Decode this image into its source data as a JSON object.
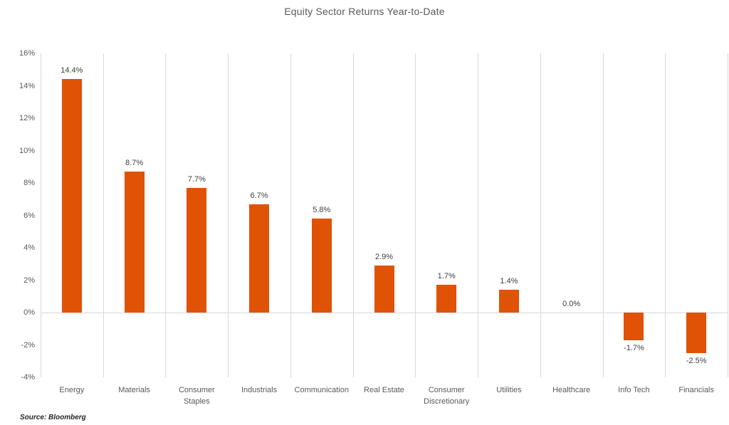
{
  "source": "Source: Bloomberg",
  "chart_data": {
    "type": "bar",
    "title": "Equity Sector Returns Year-to-Date",
    "categories": [
      "Energy",
      "Materials",
      "Consumer Staples",
      "Industrials",
      "Communication",
      "Real Estate",
      "Consumer Discretionary",
      "Utilities",
      "Healthcare",
      "Info Tech",
      "Financials"
    ],
    "values": [
      14.4,
      8.7,
      7.7,
      6.7,
      5.8,
      2.9,
      1.7,
      1.4,
      0.0,
      -1.7,
      -2.5
    ],
    "data_labels": [
      "14.4%",
      "8.7%",
      "7.7%",
      "6.7%",
      "5.8%",
      "2.9%",
      "1.7%",
      "1.4%",
      "0.0%",
      "-1.7%",
      "-2.5%"
    ],
    "xlabel": "",
    "ylabel": "",
    "ylim": [
      -4,
      16
    ],
    "ytick_step": 2,
    "ytick_labels": [
      "16%",
      "14%",
      "12%",
      "10%",
      "8%",
      "6%",
      "4%",
      "2%",
      "0%",
      "-2%",
      "-4%"
    ],
    "grid": "vertical-category-separators",
    "legend": "none",
    "bar_color": "#e05206",
    "gridline_color": "#d9d9d9",
    "units": "%"
  }
}
